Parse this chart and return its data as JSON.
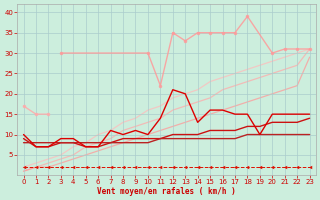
{
  "x": [
    0,
    1,
    2,
    3,
    4,
    5,
    6,
    7,
    8,
    9,
    10,
    11,
    12,
    13,
    14,
    15,
    16,
    17,
    18,
    19,
    20,
    21,
    22,
    23
  ],
  "series": {
    "pink_top": [
      null,
      null,
      null,
      30,
      null,
      null,
      null,
      null,
      null,
      null,
      30,
      22,
      35,
      33,
      35,
      35,
      35,
      35,
      39,
      null,
      30,
      31,
      31,
      31
    ],
    "pink_start": [
      17,
      15,
      15,
      null,
      null,
      null,
      null,
      null,
      null,
      null,
      null,
      null,
      null,
      null,
      null,
      null,
      null,
      null,
      null,
      null,
      null,
      null,
      null,
      null
    ],
    "linear1": [
      2,
      3,
      4,
      5,
      7,
      8,
      10,
      11,
      13,
      14,
      16,
      17,
      19,
      20,
      21,
      23,
      24,
      25,
      26,
      27,
      28,
      29,
      30,
      31
    ],
    "linear2": [
      1,
      2,
      3,
      4,
      5,
      7,
      8,
      9,
      11,
      12,
      13,
      14,
      16,
      17,
      18,
      19,
      21,
      22,
      23,
      24,
      25,
      26,
      27,
      31
    ],
    "linear3": [
      1,
      2,
      2,
      3,
      4,
      5,
      6,
      7,
      8,
      9,
      10,
      11,
      12,
      13,
      14,
      15,
      16,
      17,
      18,
      19,
      20,
      21,
      22,
      29
    ],
    "red_main": [
      10,
      7,
      7,
      9,
      9,
      7,
      7,
      11,
      10,
      11,
      10,
      14,
      21,
      20,
      13,
      16,
      16,
      15,
      15,
      10,
      15,
      15,
      15,
      15
    ],
    "red_lower": [
      9,
      7,
      7,
      8,
      8,
      7,
      7,
      8,
      9,
      9,
      9,
      9,
      10,
      10,
      10,
      11,
      11,
      11,
      12,
      12,
      13,
      13,
      13,
      14
    ],
    "red_flat": [
      8,
      8,
      8,
      8,
      8,
      8,
      8,
      8,
      8,
      8,
      8,
      9,
      9,
      9,
      9,
      9,
      9,
      9,
      10,
      10,
      10,
      10,
      10,
      10
    ],
    "dashed": [
      2,
      2,
      2,
      2,
      2,
      2,
      2,
      2,
      2,
      2,
      2,
      2,
      2,
      2,
      2,
      2,
      2,
      2,
      2,
      2,
      2,
      2,
      2,
      2
    ]
  },
  "colors": {
    "pink_top": "#ff9999",
    "pink_start": "#ffaaaa",
    "linear1": "#ffbbbb",
    "linear2": "#ffaaaa",
    "linear3": "#ff9999",
    "red_main": "#dd0000",
    "red_lower": "#cc1111",
    "red_flat": "#bb2222",
    "dashed": "#dd1100"
  },
  "bg_color": "#cceedd",
  "grid_color": "#aacccc",
  "xlabel": "Vent moyen/en rafales ( km/h )",
  "ylim": [
    0,
    42
  ],
  "xlim": [
    -0.5,
    23.5
  ],
  "yticks": [
    5,
    10,
    15,
    20,
    25,
    30,
    35,
    40
  ],
  "xticks": [
    0,
    1,
    2,
    3,
    4,
    5,
    6,
    7,
    8,
    9,
    10,
    11,
    12,
    13,
    14,
    15,
    16,
    17,
    18,
    19,
    20,
    21,
    22,
    23
  ]
}
